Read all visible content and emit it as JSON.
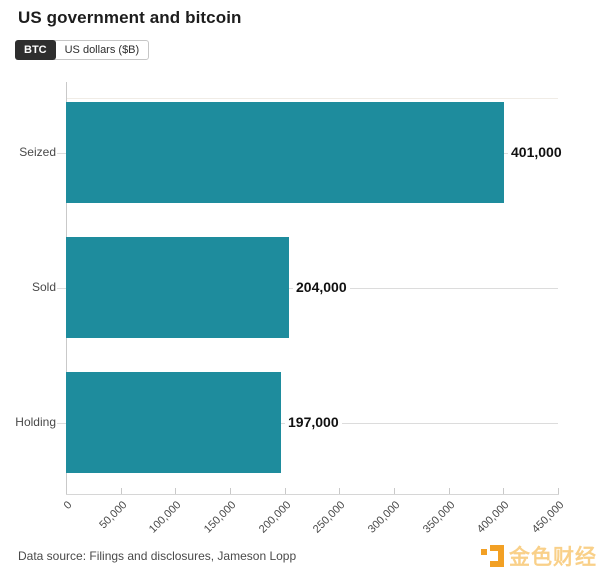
{
  "header": {
    "title": "US government and bitcoin"
  },
  "toggle": {
    "options": [
      {
        "label": "BTC",
        "selected": true
      },
      {
        "label": "US dollars ($B)",
        "selected": false
      }
    ]
  },
  "chart_data": {
    "type": "bar",
    "orientation": "horizontal",
    "title": "US government and bitcoin",
    "unit_toggle_selected": "BTC",
    "categories": [
      "Seized",
      "Sold",
      "Holding"
    ],
    "values": [
      401000,
      204000,
      197000
    ],
    "value_labels": [
      "401,000",
      "204,000",
      "197,000"
    ],
    "xlim": [
      0,
      450000
    ],
    "x_ticks": [
      0,
      50000,
      100000,
      150000,
      200000,
      250000,
      300000,
      350000,
      400000,
      450000
    ],
    "x_tick_labels": [
      "0",
      "50,000",
      "100,000",
      "150,000",
      "200,000",
      "250,000",
      "300,000",
      "350,000",
      "400,000",
      "450,000"
    ],
    "xlabel": "",
    "ylabel": "",
    "grid": false,
    "legend_position": "none",
    "bar_color": "#1e8c9d"
  },
  "footer": {
    "source": "Data source: Filings and disclosures, Jameson Lopp"
  },
  "watermark": {
    "text": "金色财经",
    "accent_color": "#f2a024"
  }
}
